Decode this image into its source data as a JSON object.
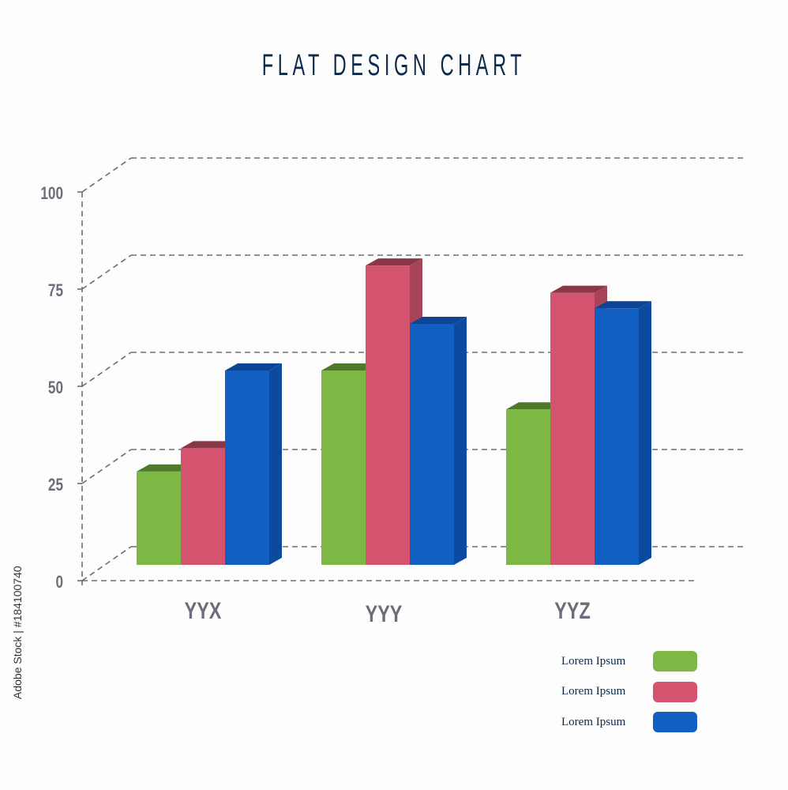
{
  "title": "FLAT DESIGN CHART",
  "side_caption": "Adobe Stock | #184100740",
  "colors": {
    "background": "#fdfdfd",
    "title": "#0d2a4a",
    "grid": "#6e6e6e",
    "tick_text": "#6b6e7a",
    "category_text": "#6b6e7a"
  },
  "chart_data": {
    "type": "bar",
    "title": "FLAT DESIGN CHART",
    "categories": [
      "YYX",
      "YYY",
      "YYZ"
    ],
    "series": [
      {
        "name": "Lorem Ipsum",
        "color": "#7cb843",
        "top_color": "#4e7a29",
        "side_color": "#5f9434",
        "values": [
          24,
          50,
          40
        ]
      },
      {
        "name": "Lorem Ipsum",
        "color": "#d4546f",
        "top_color": "#8a3848",
        "side_color": "#a8445a",
        "values": [
          30,
          77,
          70
        ]
      },
      {
        "name": "Lorem Ipsum",
        "color": "#125fc2",
        "top_color": "#0d4495",
        "side_color": "#0c4aa0",
        "values": [
          50,
          62,
          66
        ]
      }
    ],
    "yticks": [
      0,
      25,
      50,
      75,
      100
    ],
    "ylim": [
      0,
      100
    ],
    "grid": true,
    "legend_position": "bottom-right",
    "style": "3d-flat"
  }
}
